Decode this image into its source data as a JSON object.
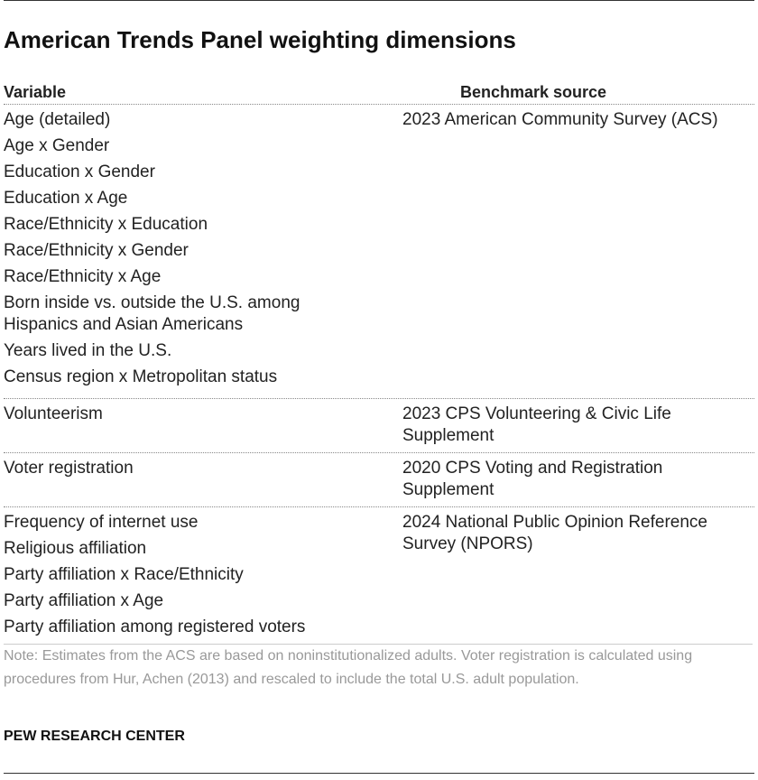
{
  "title": "American Trends Panel weighting dimensions",
  "table": {
    "columns": [
      "Variable",
      "Benchmark source"
    ],
    "groups": [
      {
        "variables": [
          "Age (detailed)",
          "Age x Gender",
          "Education x Gender",
          "Education x Age",
          "Race/Ethnicity x Education",
          "Race/Ethnicity x Gender",
          "Race/Ethnicity x Age",
          "Born inside vs. outside the U.S. among Hispanics and Asian Americans",
          "Years lived in the U.S.",
          "Census region x Metropolitan status"
        ],
        "source": "2023 American Community Survey (ACS)"
      },
      {
        "variables": [
          "Volunteerism"
        ],
        "source": "2023 CPS Volunteering & Civic Life Supplement"
      },
      {
        "variables": [
          "Voter registration"
        ],
        "source": "2020 CPS Voting and Registration Supplement"
      },
      {
        "variables": [
          "Frequency of internet use",
          "Religious affiliation",
          "Party affiliation x Race/Ethnicity",
          "Party affiliation x Age",
          "Party affiliation among registered voters"
        ],
        "source": "2024 National Public Opinion Reference Survey (NPORS)"
      }
    ]
  },
  "note": "Note: Estimates from the ACS are based on noninstitutionalized adults. Voter registration is calculated using procedures from Hur, Achen (2013) and rescaled to include the total U.S. adult population.",
  "source_credit": "PEW RESEARCH CENTER"
}
